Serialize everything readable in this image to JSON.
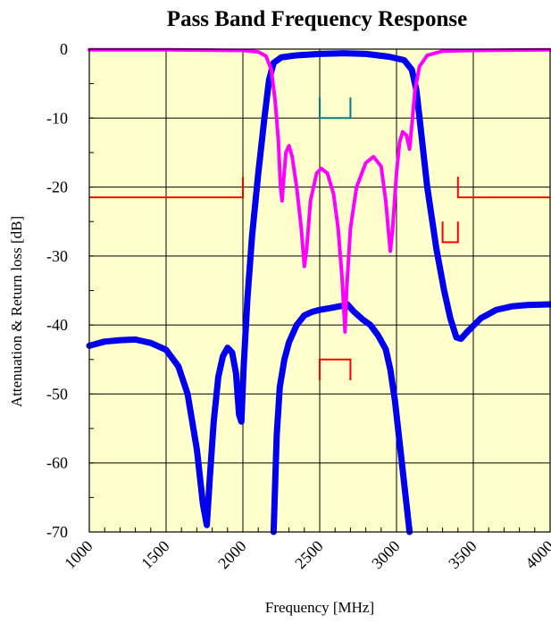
{
  "chart_data": {
    "type": "line",
    "title": "Pass Band Frequency Response",
    "xlabel": "Frequency [MHz]",
    "ylabel": "Attenuation & Return loss [dB]",
    "xlim": [
      1000,
      4000
    ],
    "ylim": [
      -70,
      0
    ],
    "x_ticks": [
      1000,
      1500,
      2000,
      2500,
      3000,
      3500,
      4000
    ],
    "x_tick_labels": [
      "1000",
      "1500",
      "2000",
      "2500",
      "3000",
      "3500",
      "4000"
    ],
    "y_ticks": [
      0,
      -10,
      -20,
      -30,
      -40,
      -50,
      -60,
      -70
    ],
    "y_tick_labels": [
      "0",
      "-10",
      "-20",
      "-30",
      "-40",
      "-50",
      "-60",
      "-70"
    ],
    "grid": true,
    "plot_background": "#FFFFCC",
    "series": [
      {
        "color": "#0000EE",
        "stroke_width": 7,
        "points": [
          [
            1000,
            -43
          ],
          [
            1100,
            -42.4
          ],
          [
            1200,
            -42.2
          ],
          [
            1300,
            -42.1
          ],
          [
            1400,
            -42.6
          ],
          [
            1500,
            -43.6
          ],
          [
            1580,
            -46
          ],
          [
            1640,
            -50
          ],
          [
            1700,
            -58
          ],
          [
            1740,
            -66
          ],
          [
            1765,
            -69
          ],
          [
            1785,
            -62
          ],
          [
            1810,
            -54
          ],
          [
            1840,
            -47.5
          ],
          [
            1870,
            -44.5
          ],
          [
            1900,
            -43.3
          ],
          [
            1930,
            -44
          ],
          [
            1955,
            -47
          ],
          [
            1975,
            -53
          ],
          [
            1990,
            -54
          ],
          [
            2005,
            -46
          ],
          [
            2030,
            -36
          ],
          [
            2060,
            -27
          ],
          [
            2100,
            -18
          ],
          [
            2140,
            -10
          ],
          [
            2170,
            -4.5
          ],
          [
            2200,
            -2
          ],
          [
            2250,
            -1.2
          ],
          [
            2350,
            -0.9
          ],
          [
            2500,
            -0.7
          ],
          [
            2650,
            -0.6
          ],
          [
            2800,
            -0.7
          ],
          [
            2950,
            -1.1
          ],
          [
            3050,
            -1.6
          ],
          [
            3100,
            -3
          ],
          [
            3130,
            -6
          ],
          [
            3160,
            -12
          ],
          [
            3200,
            -20
          ],
          [
            3260,
            -29
          ],
          [
            3310,
            -35
          ],
          [
            3350,
            -39
          ],
          [
            3390,
            -41.8
          ],
          [
            3420,
            -42
          ],
          [
            3460,
            -41
          ],
          [
            3550,
            -39
          ],
          [
            3650,
            -37.8
          ],
          [
            3750,
            -37.3
          ],
          [
            3850,
            -37.1
          ],
          [
            4000,
            -37
          ]
        ]
      },
      {
        "color": "#0000EE",
        "stroke_width": 7,
        "points": [
          [
            2200,
            -70
          ],
          [
            2210,
            -63
          ],
          [
            2220,
            -56
          ],
          [
            2240,
            -49
          ],
          [
            2270,
            -45
          ],
          [
            2300,
            -42.5
          ],
          [
            2350,
            -40
          ],
          [
            2400,
            -38.6
          ],
          [
            2450,
            -38.1
          ],
          [
            2500,
            -37.8
          ],
          [
            2580,
            -37.5
          ],
          [
            2650,
            -37.2
          ],
          [
            2680,
            -37
          ],
          [
            2720,
            -38
          ],
          [
            2780,
            -39.2
          ],
          [
            2830,
            -40
          ],
          [
            2880,
            -41.5
          ],
          [
            2930,
            -43.5
          ],
          [
            2960,
            -46.5
          ],
          [
            2990,
            -51
          ],
          [
            3020,
            -57
          ],
          [
            3050,
            -63
          ],
          [
            3075,
            -68
          ],
          [
            3085,
            -70
          ]
        ]
      },
      {
        "color": "#FF00FF",
        "stroke_width": 4,
        "points": [
          [
            1000,
            -0.1
          ],
          [
            1500,
            -0.1
          ],
          [
            2000,
            -0.2
          ],
          [
            2100,
            -0.4
          ],
          [
            2150,
            -1
          ],
          [
            2185,
            -3
          ],
          [
            2210,
            -7.5
          ],
          [
            2230,
            -13
          ],
          [
            2245,
            -20
          ],
          [
            2255,
            -22
          ],
          [
            2265,
            -19
          ],
          [
            2280,
            -15
          ],
          [
            2300,
            -14
          ],
          [
            2320,
            -15.5
          ],
          [
            2350,
            -20
          ],
          [
            2380,
            -26
          ],
          [
            2400,
            -31.5
          ],
          [
            2415,
            -29
          ],
          [
            2440,
            -22
          ],
          [
            2480,
            -18
          ],
          [
            2510,
            -17.3
          ],
          [
            2550,
            -18
          ],
          [
            2590,
            -21
          ],
          [
            2620,
            -26
          ],
          [
            2645,
            -33
          ],
          [
            2660,
            -39
          ],
          [
            2665,
            -41
          ],
          [
            2675,
            -35
          ],
          [
            2700,
            -26
          ],
          [
            2740,
            -20
          ],
          [
            2800,
            -16.5
          ],
          [
            2850,
            -15.6
          ],
          [
            2900,
            -17
          ],
          [
            2930,
            -22
          ],
          [
            2950,
            -27
          ],
          [
            2960,
            -29.3
          ],
          [
            2975,
            -26
          ],
          [
            3000,
            -18
          ],
          [
            3020,
            -13.5
          ],
          [
            3040,
            -12
          ],
          [
            3065,
            -12.5
          ],
          [
            3085,
            -14.5
          ],
          [
            3100,
            -11
          ],
          [
            3120,
            -6
          ],
          [
            3150,
            -2.5
          ],
          [
            3200,
            -0.9
          ],
          [
            3300,
            -0.3
          ],
          [
            3500,
            -0.2
          ],
          [
            4000,
            -0.1
          ]
        ]
      }
    ],
    "spec_markers": [
      {
        "color": "#FF0000",
        "points": [
          [
            1000,
            -21.5
          ],
          [
            2000,
            -21.5
          ],
          [
            2000,
            -18.5
          ]
        ]
      },
      {
        "color": "#FF0000",
        "points": [
          [
            3400,
            -18.5
          ],
          [
            3400,
            -21.5
          ],
          [
            4000,
            -21.5
          ]
        ]
      },
      {
        "color": "#008080",
        "points": [
          [
            2500,
            -7
          ],
          [
            2500,
            -10
          ],
          [
            2700,
            -10
          ],
          [
            2700,
            -7
          ]
        ]
      },
      {
        "color": "#FF0000",
        "points": [
          [
            2500,
            -48
          ],
          [
            2500,
            -45
          ],
          [
            2700,
            -45
          ],
          [
            2700,
            -48
          ]
        ]
      },
      {
        "color": "#FF0000",
        "points": [
          [
            3300,
            -25
          ],
          [
            3300,
            -28
          ],
          [
            3400,
            -28
          ],
          [
            3400,
            -25
          ]
        ]
      }
    ]
  }
}
